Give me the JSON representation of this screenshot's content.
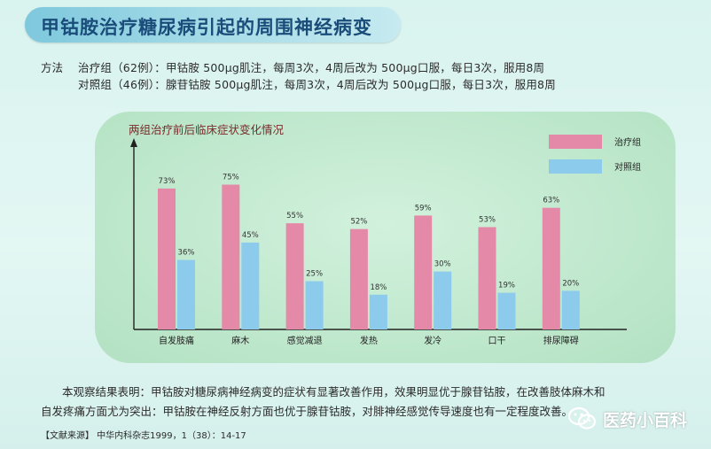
{
  "title": "甲钴胺治疗糖尿病引起的周围神经病变",
  "method": {
    "label": "方法",
    "line1": "治疗组（62例）：甲钴胺 500μg肌注，每周3次，4周后改为 500μg口服，每日3次，服用8周",
    "line2": "对照组（46例）：腺苷钴胺 500μg肌注，每周3次，4周后改为 500μg口服，每日3次，服用8周"
  },
  "chart_data": {
    "type": "bar",
    "title": "两组治疗前后临床症状变化情况",
    "categories": [
      "自发肢痛",
      "麻木",
      "感觉减退",
      "发热",
      "发冷",
      "口干",
      "排尿障碍"
    ],
    "series": [
      {
        "name": "治疗组",
        "values": [
          73,
          75,
          55,
          52,
          59,
          53,
          63
        ],
        "labels": [
          "73%",
          "75%",
          "55%",
          "52%",
          "59%",
          "53%",
          "63%"
        ],
        "color": "#e48aa8"
      },
      {
        "name": "对照组",
        "values": [
          36,
          45,
          25,
          18,
          30,
          19,
          20
        ],
        "labels": [
          "36%",
          "45%",
          "25%",
          "18%",
          "30%",
          "19%",
          "20%"
        ],
        "color": "#8ccbec"
      }
    ],
    "ylim": [
      0,
      100
    ],
    "legend": "top-right",
    "grid": false
  },
  "conclusion": {
    "line1": "本观察结果表明：甲钴胺对糖尿病神经病变的症状有显著改善作用，效果明显优于腺苷钴胺，在改善肢体麻木和",
    "line2": "自发疼痛方面尤为突出：甲钴胺在神经反射方面也优于腺苷钴胺，对腓神经感觉传导速度也有一定程度改善。"
  },
  "source": "【文献来源】 中华内科杂志1999，1（38）：14-17",
  "watermark": {
    "text": "医药小百科",
    "icon": "wechat-icon"
  }
}
